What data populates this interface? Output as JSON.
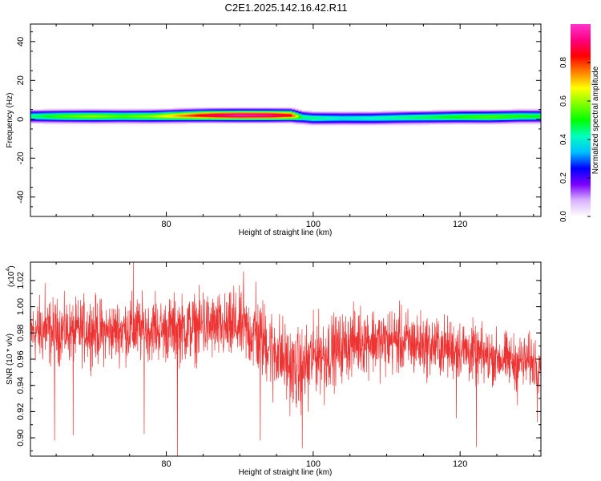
{
  "page_title": "C2E1.2025.142.16.42.R11",
  "chart_data": [
    {
      "type": "heatmap",
      "title": "C2E1.2025.142.16.42.R11",
      "xlabel": "Height of straight line (km)",
      "ylabel": "Frequency (Hz)",
      "xlim": [
        61.5,
        131
      ],
      "ylim": [
        -50,
        49
      ],
      "xticks": [
        80,
        100,
        120
      ],
      "xtick_labels": [
        "80",
        "100",
        "120"
      ],
      "yticks": [
        -40,
        -20,
        0,
        20,
        40
      ],
      "ytick_labels": [
        "-40",
        "-20",
        "0",
        "20",
        "40"
      ],
      "band": {
        "x": [
          61.5,
          66,
          70,
          74,
          78,
          82,
          86,
          90,
          94,
          97,
          98.5,
          100,
          104,
          108,
          112,
          116,
          120,
          124,
          128,
          131
        ],
        "center_hz": [
          1.5,
          1.5,
          1.5,
          1.5,
          1.5,
          1.8,
          2.0,
          2.0,
          2.0,
          2.0,
          1.0,
          0.5,
          0.5,
          0.5,
          0.8,
          1.0,
          1.2,
          1.2,
          1.5,
          1.5
        ],
        "peak_amplitude": [
          0.45,
          0.55,
          0.6,
          0.55,
          0.6,
          0.75,
          0.9,
          0.98,
          0.95,
          0.85,
          0.45,
          0.45,
          0.4,
          0.42,
          0.45,
          0.48,
          0.52,
          0.55,
          0.52,
          0.5
        ],
        "halfwidth_hz": 3
      },
      "colorbar": {
        "label": "Normalized spectral amplitude",
        "range": [
          0,
          1
        ],
        "ticks": [
          0.0,
          0.2,
          0.4,
          0.6,
          0.8
        ],
        "tick_labels": [
          "0.0",
          "0.2",
          "0.4",
          "0.6",
          "0.8"
        ],
        "colors": [
          "#ffffff",
          "#d9b3ff",
          "#7b00ff",
          "#0000ff",
          "#00bfff",
          "#00ffbf",
          "#00ff00",
          "#80ff00",
          "#ffff00",
          "#ff8000",
          "#ff0000",
          "#ff0080",
          "#ff33cc"
        ]
      },
      "grid": false
    },
    {
      "type": "line",
      "xlabel": "Height of straight line (km)",
      "ylabel": "SNR (10 * v/v)",
      "scale_label": "(x10",
      "scale_exponent": "4",
      "scale_label_close": ")",
      "xlim": [
        61.5,
        131
      ],
      "ylim": [
        0.886,
        1.034
      ],
      "xticks": [
        80,
        100,
        120
      ],
      "xtick_labels": [
        "80",
        "100",
        "120"
      ],
      "yticks": [
        0.9,
        0.92,
        0.94,
        0.96,
        0.98,
        1.0,
        1.02
      ],
      "ytick_labels": [
        "0.90",
        "0.92",
        "0.94",
        "0.96",
        "0.98",
        "1.00",
        "1.02"
      ],
      "series": [
        {
          "color": "#ee3333",
          "x": [
            61.5,
            63,
            64.5,
            66,
            67.5,
            69,
            70.5,
            72,
            73.5,
            75,
            76.5,
            78,
            79.5,
            81,
            82.5,
            84,
            85.5,
            87,
            88.5,
            90,
            91.5,
            93,
            94.5,
            96,
            97.5,
            99,
            100.5,
            102,
            103.5,
            105,
            106.5,
            108,
            109.5,
            111,
            112.5,
            114,
            115.5,
            117,
            118.5,
            120,
            121.5,
            123,
            124.5,
            126,
            127.5,
            129,
            131
          ],
          "mean": [
            0.98,
            0.982,
            0.98,
            0.982,
            0.98,
            0.983,
            0.982,
            0.98,
            0.982,
            0.983,
            0.982,
            0.983,
            0.982,
            0.983,
            0.983,
            0.984,
            0.985,
            0.984,
            0.983,
            0.985,
            0.98,
            0.975,
            0.97,
            0.96,
            0.95,
            0.955,
            0.965,
            0.965,
            0.968,
            0.972,
            0.975,
            0.975,
            0.972,
            0.975,
            0.972,
            0.972,
            0.97,
            0.97,
            0.968,
            0.968,
            0.965,
            0.962,
            0.962,
            0.96,
            0.958,
            0.958,
            0.958
          ],
          "spread": [
            0.018,
            0.02,
            0.02,
            0.018,
            0.018,
            0.02,
            0.02,
            0.018,
            0.018,
            0.02,
            0.02,
            0.018,
            0.018,
            0.02,
            0.02,
            0.02,
            0.02,
            0.02,
            0.02,
            0.02,
            0.022,
            0.024,
            0.024,
            0.024,
            0.024,
            0.024,
            0.022,
            0.022,
            0.02,
            0.02,
            0.02,
            0.02,
            0.02,
            0.02,
            0.02,
            0.02,
            0.018,
            0.018,
            0.018,
            0.018,
            0.018,
            0.018,
            0.016,
            0.016,
            0.016,
            0.016,
            0.016
          ],
          "spikes_down": [
            [
              64.8,
              0.898
            ],
            [
              67.3,
              0.902
            ],
            [
              77.0,
              0.903
            ],
            [
              81.5,
              0.886
            ],
            [
              92.8,
              0.898
            ],
            [
              94.5,
              0.927
            ],
            [
              98.5,
              0.892
            ],
            [
              99.3,
              0.92
            ],
            [
              101.5,
              0.925
            ],
            [
              119.5,
              0.915
            ],
            [
              122.2,
              0.893
            ],
            [
              127.8,
              0.925
            ],
            [
              130.5,
              0.912
            ]
          ],
          "spikes_up": [
            [
              63.5,
              1.018
            ],
            [
              75.5,
              1.034
            ],
            [
              90.5,
              1.027
            ],
            [
              92.2,
              1.019
            ],
            [
              78.5,
              1.012
            ],
            [
              85.0,
              1.011
            ],
            [
              89.2,
              1.016
            ]
          ]
        }
      ],
      "grid": false
    }
  ]
}
